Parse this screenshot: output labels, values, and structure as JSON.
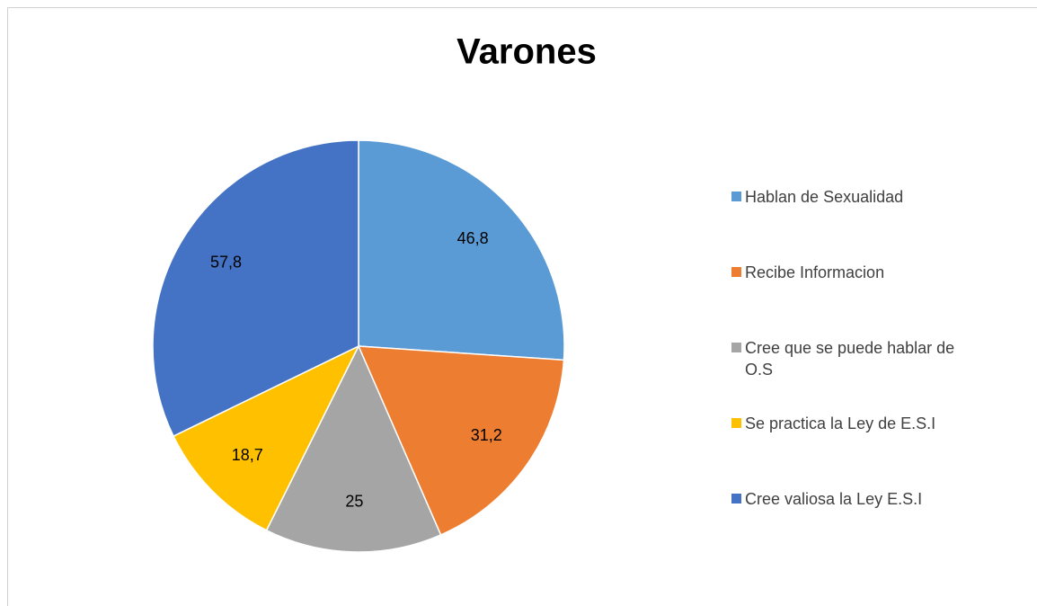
{
  "chart_data": {
    "type": "pie",
    "title": "Varones",
    "categories": [
      "Hablan de Sexualidad",
      "Recibe Informacion",
      "Cree que se puede hablar de O.S",
      "Se practica la Ley de E.S.I",
      "Cree valiosa la Ley E.S.I"
    ],
    "values": [
      46.8,
      31.2,
      25,
      18.7,
      57.8
    ],
    "value_labels": [
      "46,8",
      "31,2",
      "25",
      "18,7",
      "57,8"
    ],
    "colors": [
      "#5b9bd5",
      "#ed7d31",
      "#a5a5a5",
      "#ffc000",
      "#4472c4"
    ],
    "legend": "right"
  }
}
